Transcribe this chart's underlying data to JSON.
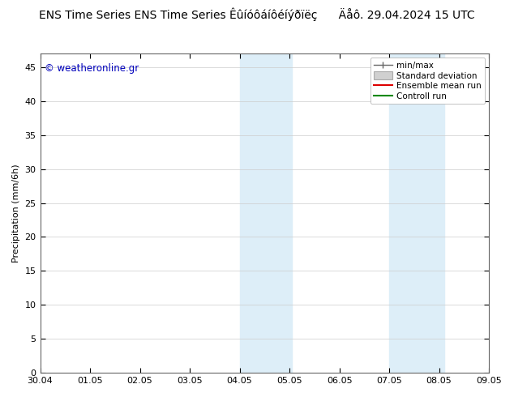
{
  "title_left": "ENS Time Series Êûíóôáíôéíýðïëç",
  "title_right": "Äåô. 29.04.2024 15 UTC",
  "ylabel": "Precipitation (mm/6h)",
  "watermark": "© weatheronline.gr",
  "ylim": [
    0,
    47
  ],
  "yticks": [
    0,
    5,
    10,
    15,
    20,
    25,
    30,
    35,
    40,
    45
  ],
  "xtick_labels": [
    "30.04",
    "01.05",
    "02.05",
    "03.05",
    "04.05",
    "05.05",
    "06.05",
    "07.05",
    "08.05",
    "09.05"
  ],
  "xlim": [
    0,
    9
  ],
  "shaded_bands": [
    {
      "xmin": 4,
      "xmax": 5.05,
      "color": "#ddeef8"
    },
    {
      "xmin": 7.0,
      "xmax": 8.1,
      "color": "#ddeef8"
    }
  ],
  "legend_entries": [
    {
      "label": "min/max",
      "color": "#888888",
      "type": "minmax"
    },
    {
      "label": "Standard deviation",
      "color": "#d0d0d0",
      "type": "fill"
    },
    {
      "label": "Ensemble mean run",
      "color": "#dd0000",
      "type": "line"
    },
    {
      "label": "Controll run",
      "color": "#008800",
      "type": "line"
    }
  ],
  "background_color": "#ffffff",
  "plot_bg_color": "#ffffff",
  "title_fontsize": 10,
  "watermark_color": "#0000bb",
  "watermark_fontsize": 8.5,
  "grid_color": "#cccccc",
  "tick_label_fontsize": 8,
  "ylabel_fontsize": 8
}
